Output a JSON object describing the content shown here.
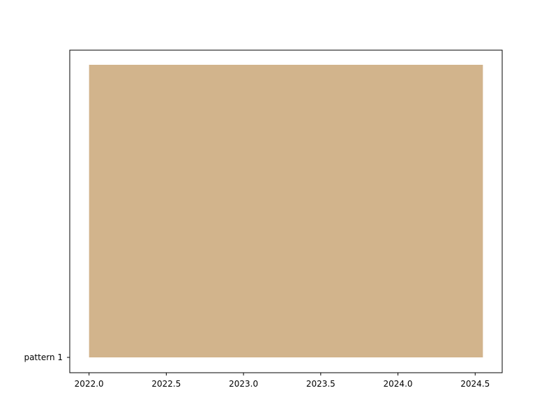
{
  "chart_data": {
    "type": "bar",
    "orientation": "horizontal",
    "title": "",
    "xlabel": "",
    "ylabel": "",
    "categories": [
      "pattern 1"
    ],
    "bars": [
      {
        "category": "pattern 1",
        "start": 2022.0,
        "end": 2024.55
      }
    ],
    "xlim": [
      2021.875,
      2024.675
    ],
    "x_ticks": [
      2022.0,
      2022.5,
      2023.0,
      2023.5,
      2024.0,
      2024.5
    ],
    "x_tick_labels": [
      "2022.0",
      "2022.5",
      "2023.0",
      "2023.5",
      "2024.0",
      "2024.5"
    ],
    "grid": false,
    "legend": "none",
    "colors": {
      "bar": "#d2b48c",
      "axes": "#000000",
      "background": "#ffffff"
    }
  }
}
